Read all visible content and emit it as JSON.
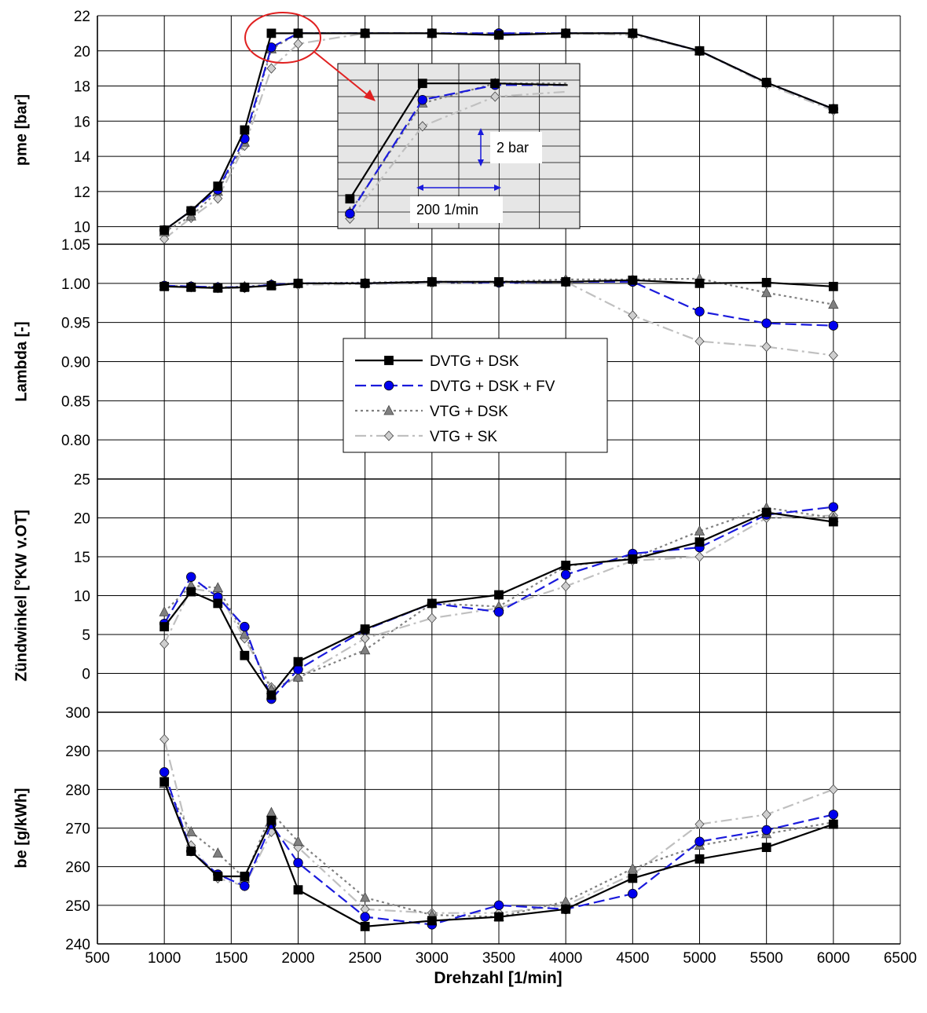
{
  "chart_data": {
    "type": "line",
    "xlabel": "Drehzahl [1/min]",
    "x_ticks": [
      500,
      1000,
      1500,
      2000,
      2500,
      3000,
      3500,
      4000,
      4500,
      5000,
      5500,
      6000,
      6500
    ],
    "xlim": [
      500,
      6500
    ],
    "x": [
      1000,
      1200,
      1400,
      1600,
      1800,
      2000,
      2500,
      3000,
      3500,
      4000,
      4500,
      5000,
      5500,
      6000
    ],
    "legend_position": "center",
    "series_styles": [
      {
        "name": "DVTG + DSK",
        "color": "#000000",
        "marker": "square",
        "dash": ""
      },
      {
        "name": "DVTG + DSK + FV",
        "color": "#1a1adc",
        "marker": "circle",
        "dash": "14,6"
      },
      {
        "name": "VTG + DSK",
        "color": "#808080",
        "marker": "triangle",
        "dash": "3,4"
      },
      {
        "name": "VTG + SK",
        "color": "#c0c0c0",
        "marker": "diamond",
        "dash": "14,5,3,5"
      }
    ],
    "panels": [
      {
        "ylabel": "pme [bar]",
        "ylim": [
          9,
          22
        ],
        "y_ticks": [
          10,
          12,
          14,
          16,
          18,
          20,
          22
        ],
        "y_decimals": 0,
        "series": [
          {
            "name": "DVTG + DSK",
            "values": [
              9.8,
              10.9,
              12.3,
              15.5,
              21.0,
              21.0,
              21.0,
              21.0,
              20.9,
              21.0,
              21.0,
              20.0,
              18.2,
              16.7
            ]
          },
          {
            "name": "DVTG + DSK + FV",
            "values": [
              9.8,
              10.9,
              12.1,
              15.0,
              20.2,
              21.0,
              21.0,
              21.0,
              21.0,
              21.0,
              21.0,
              20.0,
              18.2,
              16.7
            ]
          },
          {
            "name": "VTG + DSK",
            "values": [
              9.7,
              10.6,
              12.0,
              14.8,
              20.1,
              21.0,
              21.0,
              21.0,
              21.0,
              21.0,
              21.0,
              20.0,
              18.2,
              16.7
            ]
          },
          {
            "name": "VTG + SK",
            "values": [
              9.3,
              10.5,
              11.6,
              14.6,
              19.0,
              20.4,
              21.0,
              21.0,
              20.9,
              21.0,
              20.9,
              20.0,
              18.1,
              16.6
            ]
          }
        ]
      },
      {
        "ylabel": "Lambda [-]",
        "ylim": [
          0.75,
          1.05
        ],
        "y_ticks": [
          0.8,
          0.85,
          0.9,
          0.95,
          1.0,
          1.05
        ],
        "y_decimals": 2,
        "series": [
          {
            "name": "DVTG + DSK",
            "values": [
              0.996,
              0.995,
              0.994,
              0.995,
              0.997,
              1.0,
              1.0,
              1.002,
              1.002,
              1.002,
              1.004,
              1.0,
              1.001,
              0.996
            ]
          },
          {
            "name": "DVTG + DSK + FV",
            "values": [
              0.997,
              0.996,
              0.995,
              0.995,
              0.998,
              1.0,
              1.0,
              1.002,
              1.001,
              1.002,
              1.002,
              0.964,
              0.949,
              0.946
            ]
          },
          {
            "name": "VTG + DSK",
            "values": [
              0.997,
              0.996,
              0.995,
              0.996,
              0.998,
              1.0,
              1.001,
              1.002,
              1.002,
              1.005,
              1.005,
              1.006,
              0.988,
              0.973
            ]
          },
          {
            "name": "VTG + SK",
            "values": [
              0.996,
              0.995,
              0.994,
              0.994,
              0.999,
              0.998,
              0.999,
              1.0,
              1.0,
              1.002,
              0.959,
              0.926,
              0.919,
              0.908
            ]
          }
        ]
      },
      {
        "ylabel": "Zündwinkel [°KW v.OT]",
        "ylim": [
          -5,
          25
        ],
        "y_ticks": [
          0,
          5,
          10,
          15,
          20,
          25
        ],
        "y_decimals": 0,
        "series": [
          {
            "name": "DVTG + DSK",
            "values": [
              6.0,
              10.5,
              9.0,
              2.3,
              -2.8,
              1.5,
              5.7,
              9.0,
              10.1,
              13.9,
              14.7,
              16.9,
              20.7,
              19.5
            ]
          },
          {
            "name": "DVTG + DSK + FV",
            "values": [
              6.4,
              12.4,
              9.8,
              6.0,
              -3.3,
              0.5,
              5.6,
              9.0,
              7.9,
              12.7,
              15.4,
              16.2,
              20.4,
              21.4
            ]
          },
          {
            "name": "VTG + DSK",
            "values": [
              7.9,
              11.3,
              11.0,
              5.0,
              -2.1,
              -0.5,
              3.0,
              9.0,
              8.6,
              13.8,
              14.8,
              18.3,
              21.3,
              20.0
            ]
          },
          {
            "name": "VTG + SK",
            "values": [
              3.8,
              10.9,
              10.4,
              4.5,
              -1.8,
              -0.6,
              4.5,
              7.1,
              8.4,
              11.2,
              14.5,
              15.0,
              20.0,
              20.3
            ]
          }
        ]
      },
      {
        "ylabel": "be [g/kWh]",
        "ylim": [
          240,
          300
        ],
        "y_ticks": [
          240,
          250,
          260,
          270,
          280,
          290,
          300
        ],
        "y_decimals": 0,
        "series": [
          {
            "name": "DVTG + DSK",
            "values": [
              282,
              264,
              257.5,
              257.5,
              272,
              254,
              244.5,
              246,
              247,
              249,
              257,
              262,
              265,
              271
            ]
          },
          {
            "name": "DVTG + DSK + FV",
            "values": [
              284.5,
              264,
              258,
              255,
              271,
              261,
              247,
              245,
              250,
              249,
              253,
              266.5,
              269.5,
              273.5
            ]
          },
          {
            "name": "VTG + DSK",
            "values": [
              281.5,
              269,
              263.5,
              257,
              274,
              266.5,
              252,
              247.5,
              247,
              251,
              259.5,
              265.5,
              268.5,
              271.5
            ]
          },
          {
            "name": "VTG + SK",
            "values": [
              293,
              265.5,
              257,
              255,
              269,
              265,
              249,
              248,
              248,
              250,
              258,
              271,
              273.5,
              280
            ]
          }
        ]
      }
    ],
    "inset": {
      "scale_labels": [
        "2 bar",
        "200 1/min"
      ],
      "series": [
        {
          "name": "DVTG + DSK",
          "points": [
            [
              2300,
              10.8
            ],
            [
              2900,
              17.8
            ],
            [
              3500,
              17.8
            ],
            [
              4100,
              17.7
            ]
          ]
        },
        {
          "name": "DVTG + DSK + FV",
          "points": [
            [
              2300,
              9.9
            ],
            [
              2900,
              16.8
            ],
            [
              3500,
              17.7
            ],
            [
              4100,
              17.7
            ]
          ]
        },
        {
          "name": "VTG + DSK",
          "points": [
            [
              2300,
              10.0
            ],
            [
              2900,
              16.6
            ],
            [
              3500,
              17.8
            ],
            [
              4100,
              17.8
            ]
          ]
        },
        {
          "name": "VTG + SK",
          "points": [
            [
              2300,
              9.6
            ],
            [
              2900,
              15.2
            ],
            [
              3500,
              17.0
            ],
            [
              4100,
              17.3
            ]
          ]
        }
      ]
    }
  }
}
